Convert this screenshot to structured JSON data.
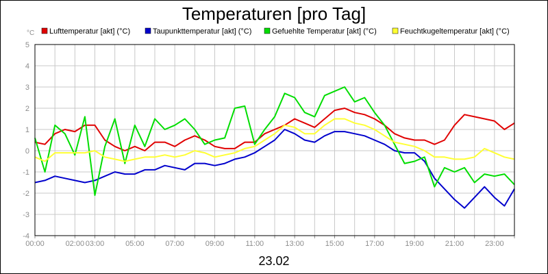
{
  "chart_data": {
    "type": "line",
    "title": "Temperaturen [pro Tag]",
    "date_label": "23.02",
    "yunit": "°C",
    "ylim": [
      -4,
      5
    ],
    "xlim": [
      "00:00",
      "24:00"
    ],
    "x_tick_labels": [
      "00:00",
      "02:00",
      "03:00",
      "05:00",
      "07:00",
      "09:00",
      "11:00",
      "13:00",
      "15:00",
      "17:00",
      "19:00",
      "21:00",
      "23:00"
    ],
    "y_tick_labels": [
      "5",
      "4",
      "3",
      "2",
      "1",
      "0",
      "-1",
      "-2",
      "-3",
      "-4"
    ],
    "grid": true,
    "legend_position": "top",
    "series": [
      {
        "name": "Lufttemperatur [akt] (°C)",
        "color": "#e00000",
        "points": [
          [
            "00:00",
            0.4
          ],
          [
            "00:30",
            0.3
          ],
          [
            "01:00",
            0.8
          ],
          [
            "01:30",
            1.0
          ],
          [
            "02:00",
            0.9
          ],
          [
            "02:30",
            1.2
          ],
          [
            "03:00",
            1.2
          ],
          [
            "03:30",
            0.5
          ],
          [
            "04:00",
            0.2
          ],
          [
            "04:30",
            0.0
          ],
          [
            "05:00",
            0.2
          ],
          [
            "05:30",
            0.0
          ],
          [
            "06:00",
            0.4
          ],
          [
            "06:30",
            0.4
          ],
          [
            "07:00",
            0.2
          ],
          [
            "07:30",
            0.5
          ],
          [
            "08:00",
            0.7
          ],
          [
            "08:30",
            0.5
          ],
          [
            "09:00",
            0.2
          ],
          [
            "09:30",
            0.1
          ],
          [
            "10:00",
            0.1
          ],
          [
            "10:30",
            0.4
          ],
          [
            "11:00",
            0.4
          ],
          [
            "11:30",
            0.8
          ],
          [
            "12:00",
            1.0
          ],
          [
            "12:30",
            1.2
          ],
          [
            "13:00",
            1.5
          ],
          [
            "13:30",
            1.3
          ],
          [
            "14:00",
            1.1
          ],
          [
            "14:30",
            1.5
          ],
          [
            "15:00",
            1.9
          ],
          [
            "15:30",
            2.0
          ],
          [
            "16:00",
            1.8
          ],
          [
            "16:30",
            1.7
          ],
          [
            "17:00",
            1.5
          ],
          [
            "17:30",
            1.2
          ],
          [
            "18:00",
            0.8
          ],
          [
            "18:30",
            0.6
          ],
          [
            "19:00",
            0.5
          ],
          [
            "19:30",
            0.5
          ],
          [
            "20:00",
            0.3
          ],
          [
            "20:30",
            0.5
          ],
          [
            "21:00",
            1.2
          ],
          [
            "21:30",
            1.7
          ],
          [
            "22:00",
            1.6
          ],
          [
            "22:30",
            1.5
          ],
          [
            "23:00",
            1.4
          ],
          [
            "23:30",
            1.0
          ],
          [
            "24:00",
            1.3
          ]
        ]
      },
      {
        "name": "Taupunkttemperatur [akt] (°C)",
        "color": "#0000cc",
        "points": [
          [
            "00:00",
            -1.5
          ],
          [
            "00:30",
            -1.4
          ],
          [
            "01:00",
            -1.2
          ],
          [
            "01:30",
            -1.3
          ],
          [
            "02:00",
            -1.4
          ],
          [
            "02:30",
            -1.5
          ],
          [
            "03:00",
            -1.4
          ],
          [
            "03:30",
            -1.2
          ],
          [
            "04:00",
            -1.0
          ],
          [
            "04:30",
            -1.1
          ],
          [
            "05:00",
            -1.1
          ],
          [
            "05:30",
            -0.9
          ],
          [
            "06:00",
            -0.9
          ],
          [
            "06:30",
            -0.7
          ],
          [
            "07:00",
            -0.8
          ],
          [
            "07:30",
            -0.9
          ],
          [
            "08:00",
            -0.6
          ],
          [
            "08:30",
            -0.6
          ],
          [
            "09:00",
            -0.7
          ],
          [
            "09:30",
            -0.6
          ],
          [
            "10:00",
            -0.4
          ],
          [
            "10:30",
            -0.3
          ],
          [
            "11:00",
            -0.1
          ],
          [
            "11:30",
            0.2
          ],
          [
            "12:00",
            0.5
          ],
          [
            "12:30",
            1.0
          ],
          [
            "13:00",
            0.8
          ],
          [
            "13:30",
            0.5
          ],
          [
            "14:00",
            0.4
          ],
          [
            "14:30",
            0.7
          ],
          [
            "15:00",
            0.9
          ],
          [
            "15:30",
            0.9
          ],
          [
            "16:00",
            0.8
          ],
          [
            "16:30",
            0.7
          ],
          [
            "17:00",
            0.5
          ],
          [
            "17:30",
            0.3
          ],
          [
            "18:00",
            0.0
          ],
          [
            "18:30",
            -0.1
          ],
          [
            "19:00",
            -0.1
          ],
          [
            "19:30",
            -0.5
          ],
          [
            "20:00",
            -1.3
          ],
          [
            "20:30",
            -1.8
          ],
          [
            "21:00",
            -2.3
          ],
          [
            "21:30",
            -2.7
          ],
          [
            "22:00",
            -2.2
          ],
          [
            "22:30",
            -1.7
          ],
          [
            "23:00",
            -2.2
          ],
          [
            "23:30",
            -2.6
          ],
          [
            "24:00",
            -1.8
          ]
        ]
      },
      {
        "name": "Gefuehlte Temperatur [akt] (°C)",
        "color": "#00dd00",
        "points": [
          [
            "00:00",
            0.6
          ],
          [
            "00:30",
            -1.0
          ],
          [
            "01:00",
            1.2
          ],
          [
            "01:30",
            0.8
          ],
          [
            "02:00",
            -0.2
          ],
          [
            "02:30",
            1.6
          ],
          [
            "03:00",
            -2.1
          ],
          [
            "03:30",
            0.2
          ],
          [
            "04:00",
            1.5
          ],
          [
            "04:30",
            -0.6
          ],
          [
            "05:00",
            1.2
          ],
          [
            "05:30",
            0.2
          ],
          [
            "06:00",
            1.5
          ],
          [
            "06:30",
            1.0
          ],
          [
            "07:00",
            1.2
          ],
          [
            "07:30",
            1.5
          ],
          [
            "08:00",
            1.0
          ],
          [
            "08:30",
            0.3
          ],
          [
            "09:00",
            0.5
          ],
          [
            "09:30",
            0.6
          ],
          [
            "10:00",
            2.0
          ],
          [
            "10:30",
            2.1
          ],
          [
            "11:00",
            0.3
          ],
          [
            "11:30",
            1.0
          ],
          [
            "12:00",
            1.6
          ],
          [
            "12:30",
            2.7
          ],
          [
            "13:00",
            2.5
          ],
          [
            "13:30",
            1.8
          ],
          [
            "14:00",
            1.6
          ],
          [
            "14:30",
            2.6
          ],
          [
            "15:00",
            2.8
          ],
          [
            "15:30",
            3.0
          ],
          [
            "16:00",
            2.3
          ],
          [
            "16:30",
            2.5
          ],
          [
            "17:00",
            1.8
          ],
          [
            "17:30",
            1.2
          ],
          [
            "18:00",
            0.3
          ],
          [
            "18:30",
            -0.6
          ],
          [
            "19:00",
            -0.5
          ],
          [
            "19:30",
            -0.3
          ],
          [
            "20:00",
            -1.7
          ],
          [
            "20:30",
            -0.8
          ],
          [
            "21:00",
            -1.0
          ],
          [
            "21:30",
            -0.8
          ],
          [
            "22:00",
            -1.5
          ],
          [
            "22:30",
            -1.1
          ],
          [
            "23:00",
            -1.2
          ],
          [
            "23:30",
            -1.1
          ],
          [
            "24:00",
            -1.6
          ]
        ]
      },
      {
        "name": "Feuchtkugeltemperatur [akt] (°C)",
        "color": "#ffff33",
        "points": [
          [
            "00:00",
            -0.3
          ],
          [
            "00:30",
            -0.5
          ],
          [
            "01:00",
            -0.1
          ],
          [
            "01:30",
            -0.1
          ],
          [
            "02:00",
            -0.1
          ],
          [
            "02:30",
            -0.1
          ],
          [
            "03:00",
            0.0
          ],
          [
            "03:30",
            -0.3
          ],
          [
            "04:00",
            -0.4
          ],
          [
            "04:30",
            -0.5
          ],
          [
            "05:00",
            -0.4
          ],
          [
            "05:30",
            -0.3
          ],
          [
            "06:00",
            -0.3
          ],
          [
            "06:30",
            -0.2
          ],
          [
            "07:00",
            -0.3
          ],
          [
            "07:30",
            -0.2
          ],
          [
            "08:00",
            0.0
          ],
          [
            "08:30",
            -0.1
          ],
          [
            "09:00",
            -0.3
          ],
          [
            "09:30",
            -0.2
          ],
          [
            "10:00",
            -0.1
          ],
          [
            "10:30",
            0.1
          ],
          [
            "11:00",
            0.2
          ],
          [
            "11:30",
            0.5
          ],
          [
            "12:00",
            0.8
          ],
          [
            "12:30",
            1.2
          ],
          [
            "13:00",
            1.1
          ],
          [
            "13:30",
            0.8
          ],
          [
            "14:00",
            0.8
          ],
          [
            "14:30",
            1.2
          ],
          [
            "15:00",
            1.5
          ],
          [
            "15:30",
            1.5
          ],
          [
            "16:00",
            1.3
          ],
          [
            "16:30",
            1.2
          ],
          [
            "17:00",
            1.0
          ],
          [
            "17:30",
            0.7
          ],
          [
            "18:00",
            0.4
          ],
          [
            "18:30",
            0.3
          ],
          [
            "19:00",
            0.2
          ],
          [
            "19:30",
            0.0
          ],
          [
            "20:00",
            -0.3
          ],
          [
            "20:30",
            -0.3
          ],
          [
            "21:00",
            -0.4
          ],
          [
            "21:30",
            -0.4
          ],
          [
            "22:00",
            -0.3
          ],
          [
            "22:30",
            0.1
          ],
          [
            "23:00",
            -0.1
          ],
          [
            "23:30",
            -0.3
          ],
          [
            "24:00",
            -0.4
          ]
        ]
      }
    ]
  }
}
